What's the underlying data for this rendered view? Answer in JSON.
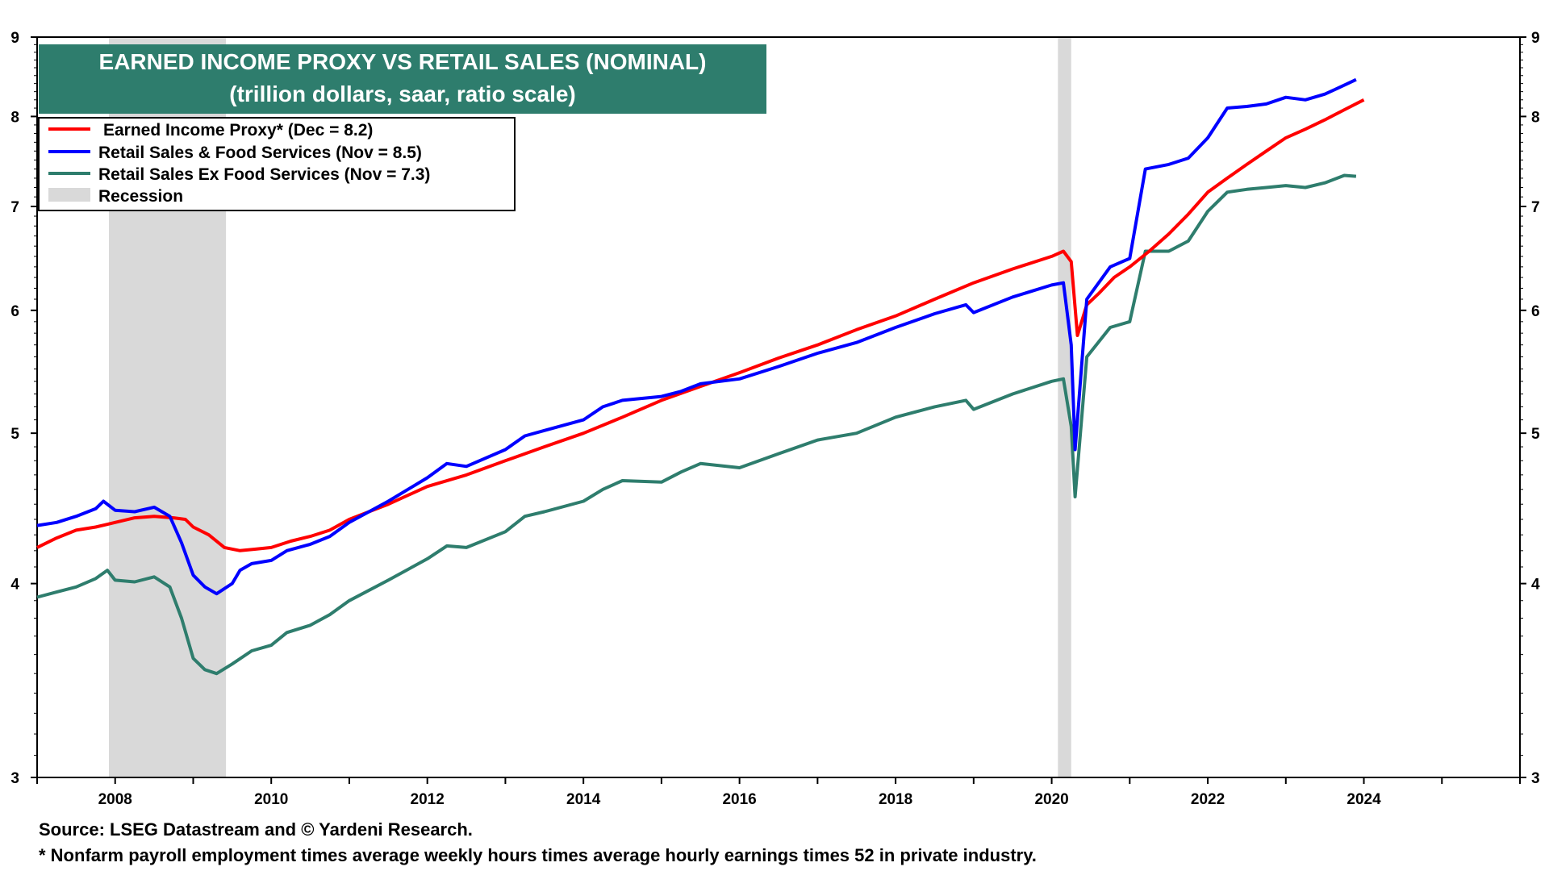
{
  "colors": {
    "earned": "#ff0000",
    "retail": "#0000ff",
    "exfood": "#2e7d6d",
    "recession": "#d9d9d9",
    "title_bg": "#2e7d6d"
  },
  "chart_data": {
    "type": "line",
    "title": "EARNED INCOME PROXY VS RETAIL SALES (NOMINAL)",
    "subtitle": "(trillion dollars, saar, ratio scale)",
    "y_scale": "log",
    "ylim": [
      3,
      9
    ],
    "y_ticks": [
      "3",
      "4",
      "5",
      "6",
      "7",
      "8",
      "9"
    ],
    "xlim": [
      2007.0,
      2026.0
    ],
    "x_ticks": [
      "2008",
      "2010",
      "2012",
      "2014",
      "2016",
      "2018",
      "2020",
      "2022",
      "2024"
    ],
    "legend_position": "top-left",
    "recessions": [
      {
        "start": 2007.92,
        "end": 2009.42
      },
      {
        "start": 2020.08,
        "end": 2020.25
      }
    ],
    "legend": [
      {
        "key": "earned",
        "label": "Earned Income Proxy* (Dec = 8.2)"
      },
      {
        "key": "retail",
        "label": "Retail Sales & Food Services (Nov = 8.5)"
      },
      {
        "key": "exfood",
        "label": "Retail Sales Ex Food Services (Nov = 7.3)"
      },
      {
        "key": "recession",
        "label": "Recession"
      }
    ],
    "series": [
      {
        "key": "earned",
        "name": "Earned Income Proxy* (Dec = 8.2)",
        "points": [
          [
            2007.0,
            4.22
          ],
          [
            2007.25,
            4.28
          ],
          [
            2007.5,
            4.33
          ],
          [
            2007.75,
            4.35
          ],
          [
            2008.0,
            4.38
          ],
          [
            2008.25,
            4.41
          ],
          [
            2008.5,
            4.42
          ],
          [
            2008.75,
            4.41
          ],
          [
            2008.9,
            4.4
          ],
          [
            2009.0,
            4.35
          ],
          [
            2009.2,
            4.3
          ],
          [
            2009.4,
            4.22
          ],
          [
            2009.6,
            4.2
          ],
          [
            2009.8,
            4.21
          ],
          [
            2010.0,
            4.22
          ],
          [
            2010.25,
            4.26
          ],
          [
            2010.5,
            4.29
          ],
          [
            2010.75,
            4.33
          ],
          [
            2011.0,
            4.4
          ],
          [
            2011.5,
            4.5
          ],
          [
            2012.0,
            4.62
          ],
          [
            2012.5,
            4.7
          ],
          [
            2013.0,
            4.8
          ],
          [
            2013.5,
            4.9
          ],
          [
            2014.0,
            5.0
          ],
          [
            2014.5,
            5.12
          ],
          [
            2015.0,
            5.25
          ],
          [
            2015.5,
            5.36
          ],
          [
            2016.0,
            5.47
          ],
          [
            2016.5,
            5.59
          ],
          [
            2017.0,
            5.7
          ],
          [
            2017.5,
            5.83
          ],
          [
            2018.0,
            5.95
          ],
          [
            2018.5,
            6.1
          ],
          [
            2019.0,
            6.25
          ],
          [
            2019.5,
            6.38
          ],
          [
            2020.0,
            6.5
          ],
          [
            2020.15,
            6.55
          ],
          [
            2020.25,
            6.45
          ],
          [
            2020.33,
            5.78
          ],
          [
            2020.45,
            6.05
          ],
          [
            2020.6,
            6.15
          ],
          [
            2020.8,
            6.3
          ],
          [
            2021.0,
            6.4
          ],
          [
            2021.25,
            6.55
          ],
          [
            2021.5,
            6.72
          ],
          [
            2021.75,
            6.92
          ],
          [
            2022.0,
            7.15
          ],
          [
            2022.25,
            7.3
          ],
          [
            2022.5,
            7.45
          ],
          [
            2022.75,
            7.6
          ],
          [
            2023.0,
            7.75
          ],
          [
            2023.25,
            7.85
          ],
          [
            2023.5,
            7.96
          ],
          [
            2023.75,
            8.08
          ],
          [
            2024.0,
            8.2
          ]
        ]
      },
      {
        "key": "retail",
        "name": "Retail Sales & Food Services (Nov = 8.5)",
        "points": [
          [
            2007.0,
            4.36
          ],
          [
            2007.25,
            4.38
          ],
          [
            2007.5,
            4.42
          ],
          [
            2007.75,
            4.47
          ],
          [
            2007.85,
            4.52
          ],
          [
            2008.0,
            4.46
          ],
          [
            2008.25,
            4.45
          ],
          [
            2008.5,
            4.48
          ],
          [
            2008.7,
            4.42
          ],
          [
            2008.85,
            4.25
          ],
          [
            2009.0,
            4.05
          ],
          [
            2009.15,
            3.98
          ],
          [
            2009.3,
            3.94
          ],
          [
            2009.5,
            4.0
          ],
          [
            2009.6,
            4.08
          ],
          [
            2009.75,
            4.12
          ],
          [
            2010.0,
            4.14
          ],
          [
            2010.2,
            4.2
          ],
          [
            2010.5,
            4.24
          ],
          [
            2010.75,
            4.29
          ],
          [
            2011.0,
            4.38
          ],
          [
            2011.5,
            4.52
          ],
          [
            2012.0,
            4.68
          ],
          [
            2012.25,
            4.78
          ],
          [
            2012.5,
            4.76
          ],
          [
            2013.0,
            4.88
          ],
          [
            2013.25,
            4.98
          ],
          [
            2013.5,
            5.02
          ],
          [
            2014.0,
            5.1
          ],
          [
            2014.25,
            5.2
          ],
          [
            2014.5,
            5.25
          ],
          [
            2015.0,
            5.28
          ],
          [
            2015.25,
            5.32
          ],
          [
            2015.5,
            5.38
          ],
          [
            2016.0,
            5.42
          ],
          [
            2016.5,
            5.52
          ],
          [
            2017.0,
            5.63
          ],
          [
            2017.5,
            5.72
          ],
          [
            2018.0,
            5.85
          ],
          [
            2018.5,
            5.97
          ],
          [
            2018.9,
            6.05
          ],
          [
            2019.0,
            5.98
          ],
          [
            2019.5,
            6.12
          ],
          [
            2020.0,
            6.23
          ],
          [
            2020.15,
            6.25
          ],
          [
            2020.25,
            5.7
          ],
          [
            2020.3,
            4.88
          ],
          [
            2020.45,
            6.1
          ],
          [
            2020.75,
            6.4
          ],
          [
            2021.0,
            6.48
          ],
          [
            2021.2,
            7.4
          ],
          [
            2021.5,
            7.45
          ],
          [
            2021.75,
            7.52
          ],
          [
            2022.0,
            7.75
          ],
          [
            2022.25,
            8.1
          ],
          [
            2022.5,
            8.12
          ],
          [
            2022.75,
            8.15
          ],
          [
            2023.0,
            8.23
          ],
          [
            2023.25,
            8.2
          ],
          [
            2023.5,
            8.27
          ],
          [
            2023.75,
            8.38
          ],
          [
            2023.9,
            8.45
          ]
        ]
      },
      {
        "key": "exfood",
        "name": "Retail Sales Ex Food Services (Nov = 7.3)",
        "points": [
          [
            2007.0,
            3.92
          ],
          [
            2007.25,
            3.95
          ],
          [
            2007.5,
            3.98
          ],
          [
            2007.75,
            4.03
          ],
          [
            2007.9,
            4.08
          ],
          [
            2008.0,
            4.02
          ],
          [
            2008.25,
            4.01
          ],
          [
            2008.5,
            4.04
          ],
          [
            2008.7,
            3.98
          ],
          [
            2008.85,
            3.8
          ],
          [
            2009.0,
            3.58
          ],
          [
            2009.15,
            3.52
          ],
          [
            2009.3,
            3.5
          ],
          [
            2009.5,
            3.55
          ],
          [
            2009.75,
            3.62
          ],
          [
            2010.0,
            3.65
          ],
          [
            2010.2,
            3.72
          ],
          [
            2010.5,
            3.76
          ],
          [
            2010.75,
            3.82
          ],
          [
            2011.0,
            3.9
          ],
          [
            2011.5,
            4.02
          ],
          [
            2012.0,
            4.15
          ],
          [
            2012.25,
            4.23
          ],
          [
            2012.5,
            4.22
          ],
          [
            2013.0,
            4.32
          ],
          [
            2013.25,
            4.42
          ],
          [
            2013.5,
            4.45
          ],
          [
            2014.0,
            4.52
          ],
          [
            2014.25,
            4.6
          ],
          [
            2014.5,
            4.66
          ],
          [
            2015.0,
            4.65
          ],
          [
            2015.25,
            4.72
          ],
          [
            2015.5,
            4.78
          ],
          [
            2016.0,
            4.75
          ],
          [
            2016.5,
            4.85
          ],
          [
            2017.0,
            4.95
          ],
          [
            2017.5,
            5.0
          ],
          [
            2018.0,
            5.12
          ],
          [
            2018.5,
            5.2
          ],
          [
            2018.9,
            5.25
          ],
          [
            2019.0,
            5.18
          ],
          [
            2019.5,
            5.3
          ],
          [
            2020.0,
            5.4
          ],
          [
            2020.15,
            5.42
          ],
          [
            2020.25,
            5.05
          ],
          [
            2020.3,
            4.55
          ],
          [
            2020.45,
            5.6
          ],
          [
            2020.75,
            5.85
          ],
          [
            2021.0,
            5.9
          ],
          [
            2021.2,
            6.55
          ],
          [
            2021.5,
            6.55
          ],
          [
            2021.75,
            6.65
          ],
          [
            2022.0,
            6.95
          ],
          [
            2022.25,
            7.15
          ],
          [
            2022.5,
            7.18
          ],
          [
            2022.75,
            7.2
          ],
          [
            2023.0,
            7.22
          ],
          [
            2023.25,
            7.2
          ],
          [
            2023.5,
            7.25
          ],
          [
            2023.75,
            7.33
          ],
          [
            2023.9,
            7.32
          ]
        ]
      }
    ]
  },
  "footer": {
    "source": "Source: LSEG Datastream and © Yardeni Research.",
    "note": "* Nonfarm payroll employment times average weekly hours times average hourly earnings times 52 in private industry."
  }
}
